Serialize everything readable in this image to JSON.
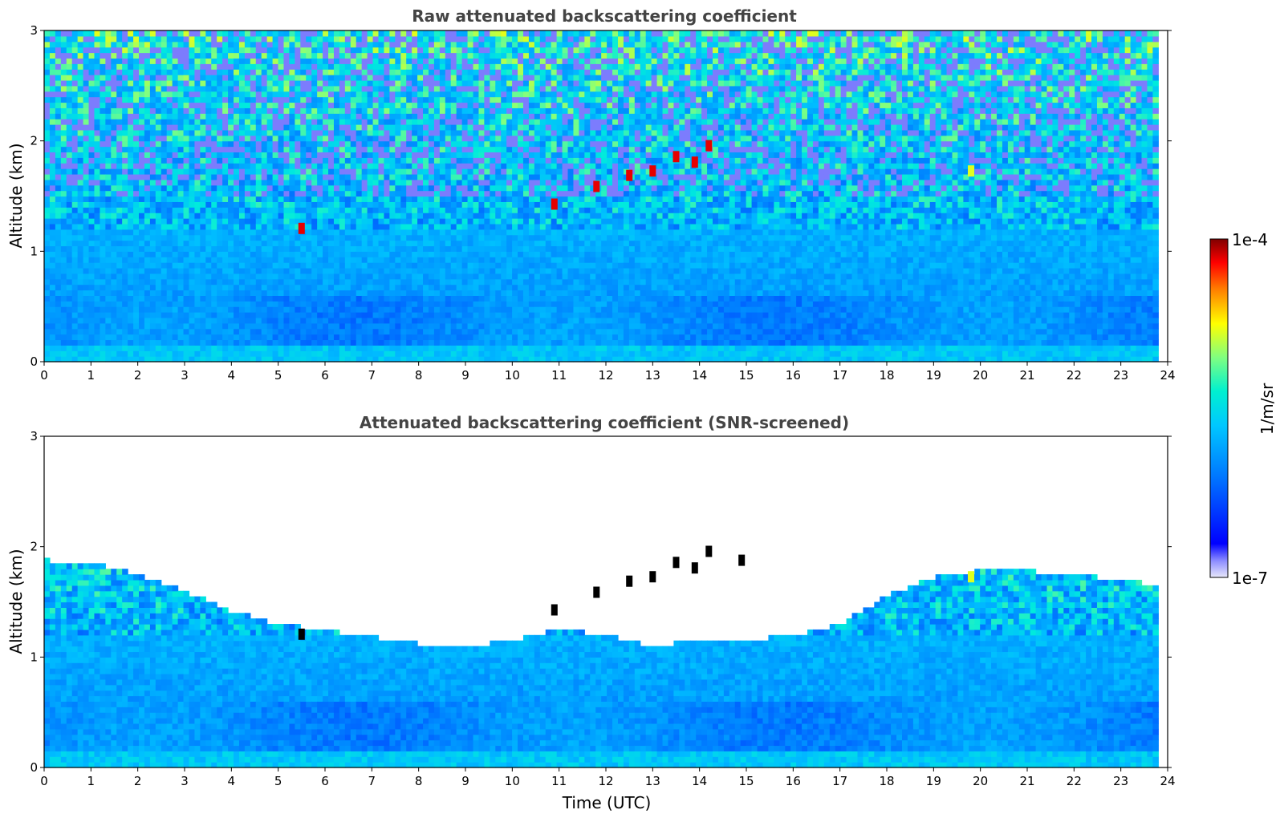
{
  "chart_data": [
    {
      "type": "heatmap",
      "title": "Raw attenuated backscattering coefficient",
      "xlabel": "",
      "ylabel": "Altitude (km)",
      "xlim": [
        0,
        24
      ],
      "ylim": [
        0,
        3
      ],
      "xticks": [
        "0",
        "1",
        "2",
        "3",
        "4",
        "5",
        "6",
        "7",
        "8",
        "9",
        "10",
        "11",
        "12",
        "13",
        "14",
        "15",
        "16",
        "17",
        "18",
        "19",
        "20",
        "21",
        "22",
        "23",
        "24"
      ],
      "yticks": [
        "0",
        "1",
        "2",
        "3"
      ],
      "data_extent_hours": [
        0,
        23.8
      ],
      "screened": false,
      "features": [
        {
          "time": 5.5,
          "altitude": 1.2,
          "level": "high"
        },
        {
          "time": 10.9,
          "altitude": 1.42,
          "level": "high"
        },
        {
          "time": 11.8,
          "altitude": 1.58,
          "level": "high"
        },
        {
          "time": 12.5,
          "altitude": 1.68,
          "level": "high"
        },
        {
          "time": 13.0,
          "altitude": 1.72,
          "level": "high"
        },
        {
          "time": 13.5,
          "altitude": 1.85,
          "level": "high"
        },
        {
          "time": 13.9,
          "altitude": 1.8,
          "level": "high"
        },
        {
          "time": 14.2,
          "altitude": 1.95,
          "level": "high"
        },
        {
          "time": 19.8,
          "altitude": 1.72,
          "level": "medium"
        }
      ]
    },
    {
      "type": "heatmap",
      "title": "Attenuated backscattering coefficient (SNR-screened)",
      "xlabel": "Time (UTC)",
      "ylabel": "Altitude (km)",
      "xlim": [
        0,
        24
      ],
      "ylim": [
        0,
        3
      ],
      "xticks": [
        "0",
        "1",
        "2",
        "3",
        "4",
        "5",
        "6",
        "7",
        "8",
        "9",
        "10",
        "11",
        "12",
        "13",
        "14",
        "15",
        "16",
        "17",
        "18",
        "19",
        "20",
        "21",
        "22",
        "23",
        "24"
      ],
      "yticks": [
        "0",
        "1",
        "2",
        "3"
      ],
      "data_extent_hours": [
        0,
        23.8
      ],
      "screened": true,
      "screen_top_km": [
        {
          "t": 0,
          "h": 1.88
        },
        {
          "t": 1,
          "h": 1.85
        },
        {
          "t": 2,
          "h": 1.75
        },
        {
          "t": 3,
          "h": 1.6
        },
        {
          "t": 4,
          "h": 1.42
        },
        {
          "t": 5,
          "h": 1.3
        },
        {
          "t": 6,
          "h": 1.25
        },
        {
          "t": 7,
          "h": 1.18
        },
        {
          "t": 8,
          "h": 1.12
        },
        {
          "t": 9,
          "h": 1.1
        },
        {
          "t": 10,
          "h": 1.15
        },
        {
          "t": 11,
          "h": 1.25
        },
        {
          "t": 12,
          "h": 1.2
        },
        {
          "t": 13,
          "h": 1.1
        },
        {
          "t": 14,
          "h": 1.15
        },
        {
          "t": 15,
          "h": 1.15
        },
        {
          "t": 16,
          "h": 1.2
        },
        {
          "t": 17,
          "h": 1.3
        },
        {
          "t": 18,
          "h": 1.55
        },
        {
          "t": 19,
          "h": 1.72
        },
        {
          "t": 20,
          "h": 1.78
        },
        {
          "t": 21,
          "h": 1.78
        },
        {
          "t": 22,
          "h": 1.75
        },
        {
          "t": 23,
          "h": 1.7
        },
        {
          "t": 23.8,
          "h": 1.65
        }
      ],
      "features": [
        {
          "time": 5.5,
          "altitude": 1.2,
          "level": "saturated"
        },
        {
          "time": 10.9,
          "altitude": 1.42,
          "level": "saturated"
        },
        {
          "time": 11.8,
          "altitude": 1.58,
          "level": "saturated"
        },
        {
          "time": 12.5,
          "altitude": 1.68,
          "level": "saturated"
        },
        {
          "time": 13.0,
          "altitude": 1.72,
          "level": "saturated"
        },
        {
          "time": 13.5,
          "altitude": 1.85,
          "level": "saturated"
        },
        {
          "time": 13.9,
          "altitude": 1.8,
          "level": "saturated"
        },
        {
          "time": 14.2,
          "altitude": 1.95,
          "level": "saturated"
        },
        {
          "time": 14.9,
          "altitude": 1.87,
          "level": "saturated"
        },
        {
          "time": 19.8,
          "altitude": 1.72,
          "level": "medium"
        }
      ]
    }
  ],
  "colorbar": {
    "label": "1/m/sr",
    "max_label": "1e-4",
    "min_label": "1e-7",
    "scale": "log",
    "range": [
      1e-07,
      0.0001
    ],
    "colormap": "jet",
    "colors": [
      "#e6e6fa",
      "#0000ff",
      "#00bfff",
      "#00ffbf",
      "#ffff00",
      "#ff4000",
      "#800000"
    ]
  }
}
